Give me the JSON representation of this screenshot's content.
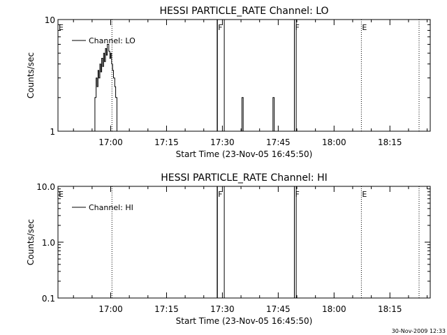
{
  "chart_data": [
    {
      "type": "line",
      "title": "HESSI PARTICLE_RATE Channel: LO",
      "xlabel": "Start Time (23-Nov-05 16:45:50)",
      "ylabel": "Counts/sec",
      "y_scale": "log",
      "xlim": [
        "16:45:50",
        "18:25:50"
      ],
      "ylim": [
        1,
        10
      ],
      "x_ticks": [
        "17:00",
        "17:15",
        "17:30",
        "17:45",
        "18:00",
        "18:15"
      ],
      "y_ticks": [
        "1",
        "10"
      ],
      "legend": {
        "placement": "top-left",
        "entries": [
          "Channel: LO"
        ]
      },
      "series": [
        {
          "name": "Channel: LO",
          "points": [
            [
              "16:55:45",
              1
            ],
            [
              "16:55:45",
              2
            ],
            [
              "16:56:05",
              2
            ],
            [
              "16:56:05",
              3
            ],
            [
              "16:56:20",
              3
            ],
            [
              "16:56:20",
              2.5
            ],
            [
              "16:56:35",
              2.5
            ],
            [
              "16:56:35",
              3.5
            ],
            [
              "16:56:50",
              3.5
            ],
            [
              "16:56:50",
              3
            ],
            [
              "16:57:05",
              3
            ],
            [
              "16:57:05",
              4
            ],
            [
              "16:57:20",
              4
            ],
            [
              "16:57:20",
              3.4
            ],
            [
              "16:57:35",
              3.4
            ],
            [
              "16:57:35",
              4.5
            ],
            [
              "16:57:50",
              4.5
            ],
            [
              "16:57:50",
              3.8
            ],
            [
              "16:58:05",
              3.8
            ],
            [
              "16:58:05",
              5
            ],
            [
              "16:58:20",
              5
            ],
            [
              "16:58:20",
              4.2
            ],
            [
              "16:58:35",
              4.2
            ],
            [
              "16:58:35",
              5.5
            ],
            [
              "16:58:50",
              5.5
            ],
            [
              "16:58:50",
              4.8
            ],
            [
              "16:59:05",
              4.8
            ],
            [
              "16:59:05",
              6
            ],
            [
              "16:59:30",
              6
            ],
            [
              "16:59:30",
              5.2
            ],
            [
              "16:59:45",
              5.2
            ],
            [
              "16:59:45",
              4.5
            ],
            [
              "17:00:00",
              4.5
            ],
            [
              "17:00:00",
              5
            ],
            [
              "17:00:15",
              5
            ],
            [
              "17:00:15",
              4
            ],
            [
              "17:00:30",
              4
            ],
            [
              "17:00:30",
              3.5
            ],
            [
              "17:00:45",
              3.5
            ],
            [
              "17:00:45",
              3
            ],
            [
              "17:01:05",
              3
            ],
            [
              "17:01:05",
              2.5
            ],
            [
              "17:01:20",
              2.5
            ],
            [
              "17:01:20",
              2
            ],
            [
              "17:01:40",
              2
            ],
            [
              "17:01:40",
              1
            ]
          ],
          "spikes": [
            {
              "start": "17:28:35",
              "end": "17:30:30",
              "value": 10
            },
            {
              "start": "17:35:15",
              "end": "17:35:35",
              "value": 2
            },
            {
              "start": "17:43:35",
              "end": "17:43:55",
              "value": 2
            },
            {
              "start": "17:49:20",
              "end": "17:49:50",
              "value": 10
            }
          ]
        }
      ],
      "markers": [
        {
          "time": "16:45:50",
          "label": "E",
          "style": "dotted"
        },
        {
          "time": "17:00:20",
          "label": "",
          "style": "dotted"
        },
        {
          "time": "17:28:40",
          "label": "F",
          "style": "solid"
        },
        {
          "time": "17:49:20",
          "label": "F",
          "style": "solid"
        },
        {
          "time": "18:07:20",
          "label": "E",
          "style": "dotted"
        },
        {
          "time": "18:22:50",
          "label": "",
          "style": "dotted"
        }
      ]
    },
    {
      "type": "line",
      "title": "HESSI PARTICLE_RATE Channel: HI",
      "xlabel": "Start Time (23-Nov-05 16:45:50)",
      "ylabel": "Counts/sec",
      "y_scale": "log",
      "xlim": [
        "16:45:50",
        "18:25:50"
      ],
      "ylim": [
        0.1,
        10
      ],
      "x_ticks": [
        "17:00",
        "17:15",
        "17:30",
        "17:45",
        "18:00",
        "18:15"
      ],
      "y_ticks": [
        "0.1",
        "1.0",
        "10.0"
      ],
      "legend": {
        "placement": "top-left",
        "entries": [
          "Channel: HI"
        ]
      },
      "series": [
        {
          "name": "Channel: HI",
          "points": [],
          "spikes": [
            {
              "start": "17:28:35",
              "end": "17:30:30",
              "value": 10
            },
            {
              "start": "17:49:20",
              "end": "17:49:50",
              "value": 10
            }
          ]
        }
      ],
      "markers": [
        {
          "time": "16:45:50",
          "label": "E",
          "style": "dotted"
        },
        {
          "time": "17:00:20",
          "label": "",
          "style": "dotted"
        },
        {
          "time": "17:28:40",
          "label": "F",
          "style": "solid"
        },
        {
          "time": "17:49:20",
          "label": "F",
          "style": "solid"
        },
        {
          "time": "18:07:20",
          "label": "E",
          "style": "dotted"
        },
        {
          "time": "18:22:50",
          "label": "",
          "style": "dotted"
        }
      ]
    }
  ],
  "footer": {
    "timestamp": "30-Nov-2009 12:33"
  }
}
